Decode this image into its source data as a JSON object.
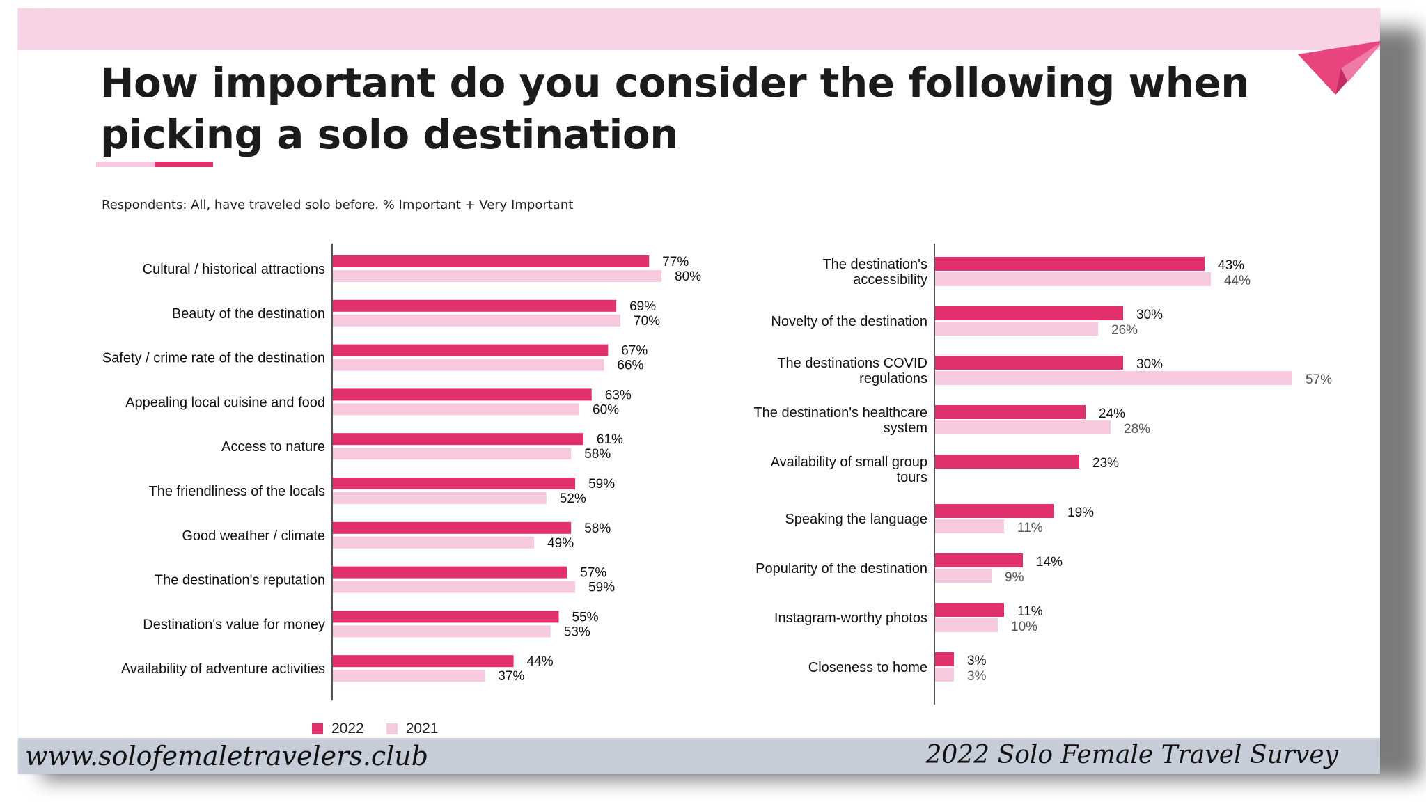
{
  "page": {
    "title": "How important do you consider the following when picking a solo destination",
    "subtitle": "Respondents: All, have traveled solo before. % Important + Very Important",
    "footer_left": "www.solofemaletravelers.club",
    "footer_right": "2022 Solo Female Travel Survey"
  },
  "colors": {
    "series_2022": "#e0306e",
    "series_2021": "#f7c9de",
    "band": "#f7d3e5",
    "footer": "#c6ccd8"
  },
  "icons": {
    "plane": "paper-plane-icon"
  },
  "legend": [
    {
      "label": "2022",
      "color": "#e0306e"
    },
    {
      "label": "2021",
      "color": "#f7c9de"
    }
  ],
  "chart_data": [
    {
      "type": "bar",
      "orientation": "horizontal",
      "categories": [
        "Cultural / historical attractions",
        "Beauty of the destination",
        "Safety / crime rate of the destination",
        "Appealing local cuisine and food",
        "Access to nature",
        "The friendliness of the locals",
        "Good weather / climate",
        "The destination's reputation",
        "Destination's value for money",
        "Availability of adventure activities"
      ],
      "series": [
        {
          "name": "2022",
          "values": [
            77,
            69,
            67,
            63,
            61,
            59,
            58,
            57,
            55,
            44
          ]
        },
        {
          "name": "2021",
          "values": [
            80,
            70,
            66,
            60,
            58,
            52,
            49,
            59,
            53,
            37
          ]
        }
      ],
      "unit": "%"
    },
    {
      "type": "bar",
      "orientation": "horizontal",
      "categories": [
        [
          "The destination's",
          "accessibility"
        ],
        [
          "Novelty of the destination"
        ],
        [
          "The destinations COVID",
          "regulations"
        ],
        [
          "The destination's healthcare",
          "system"
        ],
        [
          "Availability of small group",
          "tours"
        ],
        [
          "Speaking the language"
        ],
        [
          "Popularity of the destination"
        ],
        [
          "Instagram-worthy photos"
        ],
        [
          "Closeness to home"
        ]
      ],
      "series": [
        {
          "name": "2022",
          "values": [
            43,
            30,
            30,
            24,
            23,
            19,
            14,
            11,
            3
          ]
        },
        {
          "name": "2021",
          "values": [
            44,
            26,
            57,
            28,
            null,
            11,
            9,
            10,
            3
          ]
        }
      ],
      "unit": "%"
    }
  ]
}
